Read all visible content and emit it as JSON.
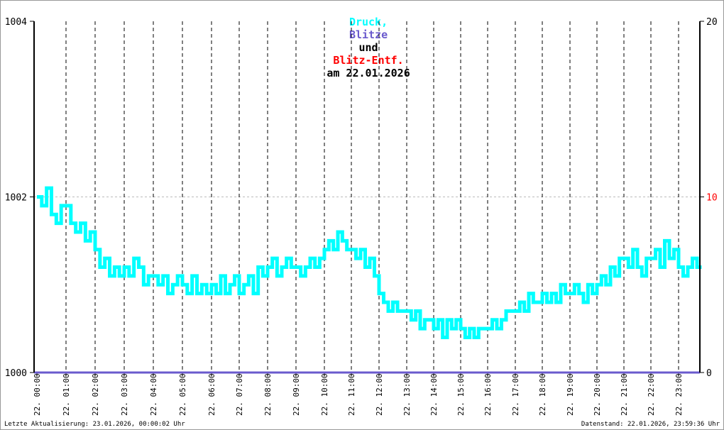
{
  "title": {
    "parts": [
      {
        "text": "Druck,",
        "color": "#00ffff"
      },
      {
        "text": "Blitze",
        "color": "#6a5acd"
      },
      {
        "text": "und",
        "color": "#000000"
      },
      {
        "text": "Blitz-Entf.",
        "color": "#ff0000"
      },
      {
        "text": "am 22.01.2026",
        "color": "#000000"
      }
    ]
  },
  "footer": {
    "left": "Letzte Aktualisierung: 23.01.2026, 00:00:02 Uhr",
    "right": "Datenstand: 22.01.2026, 23:59:36 Uhr"
  },
  "chart_data": {
    "type": "line",
    "title": "Druck, Blitze und Blitz-Entf. am 22.01.2026",
    "y_left": {
      "range": [
        1000,
        1004
      ],
      "ticks": [
        "1000",
        "1002",
        "1004"
      ]
    },
    "y_right": {
      "range": [
        0,
        20
      ],
      "ticks": [
        "0",
        "10",
        "20"
      ],
      "highlight_tick": "10",
      "highlight_color": "#ff0000"
    },
    "x_ticks": [
      "22. 00:00",
      "22. 01:00",
      "22. 02:00",
      "22. 03:00",
      "22. 04:00",
      "22. 05:00",
      "22. 06:00",
      "22. 07:00",
      "22. 08:00",
      "22. 09:00",
      "22. 10:00",
      "22. 11:00",
      "22. 12:00",
      "22. 13:00",
      "22. 14:00",
      "22. 15:00",
      "22. 16:00",
      "22. 17:00",
      "22. 18:00",
      "22. 19:00",
      "22. 20:00",
      "22. 21:00",
      "22. 22:00",
      "22. 23:00"
    ],
    "grid": {
      "vertical": "dashed hourly",
      "horizontal": "dotted at 1002"
    },
    "series": [
      {
        "name": "Druck",
        "color": "#00ffff",
        "interval_minutes": 10,
        "values": [
          1002.0,
          1001.9,
          1002.1,
          1001.8,
          1001.7,
          1001.9,
          1001.9,
          1001.7,
          1001.6,
          1001.7,
          1001.5,
          1001.6,
          1001.4,
          1001.2,
          1001.3,
          1001.1,
          1001.2,
          1001.1,
          1001.2,
          1001.1,
          1001.3,
          1001.2,
          1001.0,
          1001.1,
          1001.1,
          1001.0,
          1001.1,
          1000.9,
          1001.0,
          1001.1,
          1001.0,
          1000.9,
          1001.1,
          1000.9,
          1001.0,
          1000.9,
          1001.0,
          1000.9,
          1001.1,
          1000.9,
          1001.0,
          1001.1,
          1000.9,
          1001.0,
          1001.1,
          1000.9,
          1001.2,
          1001.1,
          1001.2,
          1001.3,
          1001.1,
          1001.2,
          1001.3,
          1001.2,
          1001.2,
          1001.1,
          1001.2,
          1001.3,
          1001.2,
          1001.3,
          1001.4,
          1001.5,
          1001.4,
          1001.6,
          1001.5,
          1001.4,
          1001.4,
          1001.3,
          1001.4,
          1001.2,
          1001.3,
          1001.1,
          1000.9,
          1000.8,
          1000.7,
          1000.8,
          1000.7,
          1000.7,
          1000.7,
          1000.6,
          1000.7,
          1000.5,
          1000.6,
          1000.6,
          1000.5,
          1000.6,
          1000.4,
          1000.6,
          1000.5,
          1000.6,
          1000.5,
          1000.4,
          1000.5,
          1000.4,
          1000.5,
          1000.5,
          1000.5,
          1000.6,
          1000.5,
          1000.6,
          1000.7,
          1000.7,
          1000.7,
          1000.8,
          1000.7,
          1000.9,
          1000.8,
          1000.8,
          1000.9,
          1000.8,
          1000.9,
          1000.8,
          1001.0,
          1000.9,
          1000.9,
          1001.0,
          1000.9,
          1000.8,
          1001.0,
          1000.9,
          1001.0,
          1001.1,
          1001.0,
          1001.2,
          1001.1,
          1001.3,
          1001.3,
          1001.2,
          1001.4,
          1001.2,
          1001.1,
          1001.3,
          1001.3,
          1001.4,
          1001.2,
          1001.5,
          1001.3,
          1001.4,
          1001.2,
          1001.1,
          1001.2,
          1001.3,
          1001.2,
          1001.2
        ]
      },
      {
        "name": "Blitze",
        "color": "#6a5acd",
        "axis": "right",
        "values": [
          0
        ]
      }
    ]
  }
}
